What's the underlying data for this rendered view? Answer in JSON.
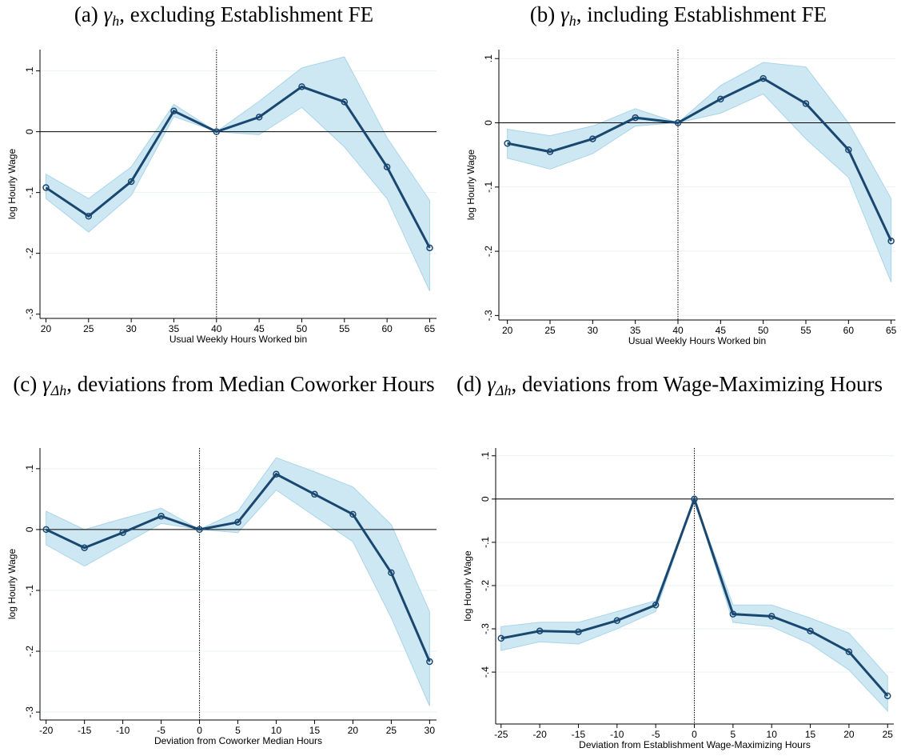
{
  "chart_data": [
    {
      "type": "line",
      "title": {
        "label": "(a)",
        "symbol": "γ",
        "subscript": "h",
        "text": ", excluding Establishment FE"
      },
      "xlabel": "Usual Weekly Hours Worked bin",
      "ylabel": "log Hourly Wage",
      "x": [
        20,
        25,
        30,
        35,
        40,
        45,
        50,
        55,
        60,
        65
      ],
      "values": [
        -0.092,
        -0.139,
        -0.082,
        0.034,
        0,
        0.024,
        0.074,
        0.049,
        -0.058,
        -0.191
      ],
      "lower": [
        -0.11,
        -0.165,
        -0.105,
        0.025,
        0,
        -0.005,
        0.04,
        -0.025,
        -0.11,
        -0.262
      ],
      "upper": [
        -0.07,
        -0.11,
        -0.058,
        0.045,
        0,
        0.05,
        0.105,
        0.123,
        -0.01,
        -0.113
      ],
      "color": "#1a476f",
      "band_color": "#cde8f3",
      "xlim": [
        19.3,
        65.8
      ],
      "xticks": [
        20,
        25,
        30,
        35,
        40,
        45,
        50,
        55,
        60,
        65
      ],
      "ylim": [
        -0.307,
        0.135
      ],
      "yticks": [
        {
          "value": -0.3,
          "label": "-.3"
        },
        {
          "value": -0.2,
          "label": "-.2"
        },
        {
          "value": -0.1,
          "label": "-.1"
        },
        0,
        {
          "value": 0.1,
          "label": ".1"
        }
      ],
      "vline": 40,
      "hline": 0,
      "grid": true
    },
    {
      "type": "line",
      "title": {
        "label": "(b)",
        "symbol": "γ",
        "subscript": "h",
        "text": ", including Establishment FE"
      },
      "xlabel": "Usual Weekly Hours Worked bin",
      "ylabel": "log Hourly Wage",
      "x": [
        20,
        25,
        30,
        35,
        40,
        45,
        50,
        55,
        60,
        65
      ],
      "values": [
        -0.032,
        -0.045,
        -0.025,
        0.008,
        0,
        0.037,
        0.069,
        0.03,
        -0.042,
        -0.184
      ],
      "lower": [
        -0.055,
        -0.072,
        -0.048,
        -0.005,
        0,
        0.015,
        0.045,
        -0.025,
        -0.085,
        -0.248
      ],
      "upper": [
        -0.01,
        -0.02,
        -0.005,
        0.022,
        0,
        0.058,
        0.094,
        0.087,
        0,
        -0.118
      ],
      "color": "#1a476f",
      "band_color": "#cde8f3",
      "xlim": [
        19.0,
        65.5
      ],
      "xticks": [
        20,
        25,
        30,
        35,
        40,
        45,
        50,
        55,
        60,
        65
      ],
      "ylim": [
        -0.307,
        0.114
      ],
      "yticks": [
        {
          "value": -0.3,
          "label": "-.3"
        },
        {
          "value": -0.2,
          "label": "-.2"
        },
        {
          "value": -0.1,
          "label": "-.1"
        },
        0,
        {
          "value": 0.1,
          "label": ".1"
        }
      ],
      "vline": 40,
      "hline": 0,
      "grid": true
    },
    {
      "type": "line",
      "title": {
        "label": "(c)",
        "symbol": "γ",
        "subscript": "Δh",
        "text": ", deviations from Median Coworker Hours"
      },
      "xlabel": "Deviation from Coworker Median Hours",
      "ylabel": "log Hourly Wage",
      "x": [
        -20,
        -15,
        -10,
        -5,
        0,
        5,
        10,
        15,
        20,
        25,
        30
      ],
      "values": [
        0,
        -0.03,
        -0.005,
        0.022,
        0,
        0.012,
        0.091,
        0.058,
        0.025,
        -0.071,
        -0.217
      ],
      "lower": [
        -0.025,
        -0.06,
        -0.025,
        0.01,
        0,
        -0.005,
        0.065,
        0.022,
        -0.02,
        -0.145,
        -0.29
      ],
      "upper": [
        0.03,
        0,
        0.018,
        0.035,
        0,
        0.03,
        0.118,
        0.095,
        0.07,
        0.008,
        -0.135
      ],
      "color": "#1a476f",
      "band_color": "#cde8f3",
      "xlim": [
        -20.8,
        30.9
      ],
      "xticks": [
        -20,
        -15,
        -10,
        -5,
        0,
        5,
        10,
        15,
        20,
        25,
        30
      ],
      "ylim": [
        -0.313,
        0.134
      ],
      "yticks": [
        {
          "value": -0.3,
          "label": "-.3"
        },
        {
          "value": -0.2,
          "label": "-.2"
        },
        {
          "value": -0.1,
          "label": "-.1"
        },
        0,
        {
          "value": 0.1,
          "label": ".1"
        }
      ],
      "vline": 0,
      "hline": 0,
      "grid": true
    },
    {
      "type": "line",
      "title": {
        "label": "(d)",
        "symbol": "γ",
        "subscript": "Δh",
        "text": ", deviations from Wage-Maximizing Hours"
      },
      "xlabel": "Deviation from Establishment Wage-Maximizing Hours",
      "ylabel": "log Hourly Wage",
      "x": [
        -25,
        -20,
        -15,
        -10,
        -5,
        0,
        5,
        10,
        15,
        20,
        25
      ],
      "values": [
        -0.322,
        -0.305,
        -0.307,
        -0.281,
        -0.245,
        0,
        -0.266,
        -0.271,
        -0.305,
        -0.353,
        -0.455
      ],
      "lower": [
        -0.35,
        -0.33,
        -0.335,
        -0.3,
        -0.26,
        0,
        -0.285,
        -0.295,
        -0.335,
        -0.395,
        -0.49
      ],
      "upper": [
        -0.295,
        -0.285,
        -0.285,
        -0.26,
        -0.235,
        0,
        -0.245,
        -0.245,
        -0.275,
        -0.31,
        -0.41
      ],
      "color": "#1a476f",
      "band_color": "#cde8f3",
      "xlim": [
        -25.7,
        25.8
      ],
      "xticks": [
        -25,
        -20,
        -15,
        -10,
        -5,
        0,
        5,
        10,
        15,
        20,
        25
      ],
      "ylim": [
        -0.52,
        0.118
      ],
      "yticks": [
        {
          "value": -0.4,
          "label": "-.4"
        },
        {
          "value": -0.3,
          "label": "-.3"
        },
        {
          "value": -0.2,
          "label": "-.2"
        },
        {
          "value": -0.1,
          "label": "-.1"
        },
        0,
        {
          "value": 0.1,
          "label": ".1"
        }
      ],
      "vline": 0,
      "hline": 0,
      "grid": true
    }
  ]
}
